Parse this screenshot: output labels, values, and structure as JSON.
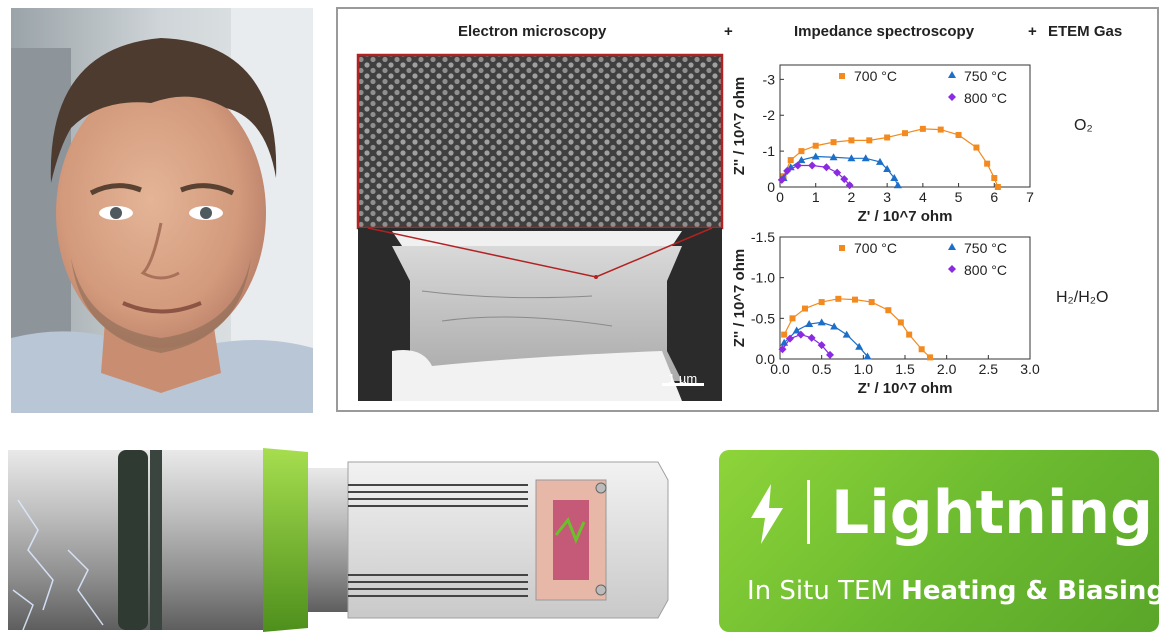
{
  "figure": {
    "header_left": "Electron microscopy",
    "plus1": "+",
    "header_mid": "Impedance spectroscopy",
    "plus2": "+",
    "header_right": "ETEM Gas",
    "scale_bar": "1 µm"
  },
  "chart_data": [
    {
      "type": "scatter",
      "gas": "O2",
      "xlabel": "Z' / 10^7 ohm",
      "ylabel": "Z'' / 10^7 ohm",
      "xlim": [
        0,
        7
      ],
      "ylim": [
        0,
        -3.4
      ],
      "x_ticks": [
        "0",
        "1",
        "2",
        "3",
        "4",
        "5",
        "6",
        "7"
      ],
      "y_ticks": [
        "0",
        "-1",
        "-2",
        "-3"
      ],
      "legend": [
        "700 °C",
        "750 °C",
        "800 °C"
      ],
      "series": [
        {
          "name": "700 °C",
          "color": "#f28a1f",
          "marker": "square",
          "points": [
            [
              0.1,
              -0.3
            ],
            [
              0.3,
              -0.75
            ],
            [
              0.6,
              -1.0
            ],
            [
              1.0,
              -1.15
            ],
            [
              1.5,
              -1.25
            ],
            [
              2.0,
              -1.3
            ],
            [
              2.5,
              -1.3
            ],
            [
              3.0,
              -1.38
            ],
            [
              3.5,
              -1.5
            ],
            [
              4.0,
              -1.62
            ],
            [
              4.5,
              -1.6
            ],
            [
              5.0,
              -1.45
            ],
            [
              5.5,
              -1.1
            ],
            [
              5.8,
              -0.65
            ],
            [
              6.0,
              -0.25
            ],
            [
              6.1,
              0.0
            ]
          ]
        },
        {
          "name": "750 °C",
          "color": "#1c6fc9",
          "marker": "triangle",
          "points": [
            [
              0.1,
              -0.25
            ],
            [
              0.3,
              -0.55
            ],
            [
              0.6,
              -0.75
            ],
            [
              1.0,
              -0.85
            ],
            [
              1.5,
              -0.83
            ],
            [
              2.0,
              -0.8
            ],
            [
              2.4,
              -0.8
            ],
            [
              2.8,
              -0.7
            ],
            [
              3.0,
              -0.5
            ],
            [
              3.2,
              -0.25
            ],
            [
              3.3,
              -0.05
            ]
          ]
        },
        {
          "name": "800 °C",
          "color": "#8a2be2",
          "marker": "diamond",
          "points": [
            [
              0.05,
              -0.2
            ],
            [
              0.2,
              -0.45
            ],
            [
              0.5,
              -0.6
            ],
            [
              0.9,
              -0.6
            ],
            [
              1.3,
              -0.55
            ],
            [
              1.6,
              -0.4
            ],
            [
              1.8,
              -0.22
            ],
            [
              1.95,
              -0.05
            ]
          ]
        }
      ]
    },
    {
      "type": "scatter",
      "gas": "H2/H2O",
      "xlabel": "Z' / 10^7 ohm",
      "ylabel": "Z'' / 10^7 ohm",
      "xlim": [
        0,
        3
      ],
      "ylim": [
        0,
        -1.5
      ],
      "x_ticks": [
        "0.0",
        "0.5",
        "1.0",
        "1.5",
        "2.0",
        "2.5",
        "3.0"
      ],
      "y_ticks": [
        "0.0",
        "-0.5",
        "-1.0",
        "-1.5"
      ],
      "legend": [
        "700 °C",
        "750 °C",
        "800 °C"
      ],
      "series": [
        {
          "name": "700 °C",
          "color": "#f28a1f",
          "marker": "square",
          "points": [
            [
              0.05,
              -0.3
            ],
            [
              0.15,
              -0.5
            ],
            [
              0.3,
              -0.62
            ],
            [
              0.5,
              -0.7
            ],
            [
              0.7,
              -0.74
            ],
            [
              0.9,
              -0.73
            ],
            [
              1.1,
              -0.7
            ],
            [
              1.3,
              -0.6
            ],
            [
              1.45,
              -0.45
            ],
            [
              1.55,
              -0.3
            ],
            [
              1.7,
              -0.12
            ],
            [
              1.8,
              -0.02
            ]
          ]
        },
        {
          "name": "750 °C",
          "color": "#1c6fc9",
          "marker": "triangle",
          "points": [
            [
              0.05,
              -0.2
            ],
            [
              0.2,
              -0.35
            ],
            [
              0.35,
              -0.43
            ],
            [
              0.5,
              -0.45
            ],
            [
              0.65,
              -0.4
            ],
            [
              0.8,
              -0.3
            ],
            [
              0.95,
              -0.15
            ],
            [
              1.05,
              -0.03
            ]
          ]
        },
        {
          "name": "800 °C",
          "color": "#8a2be2",
          "marker": "diamond",
          "points": [
            [
              0.03,
              -0.12
            ],
            [
              0.12,
              -0.25
            ],
            [
              0.25,
              -0.3
            ],
            [
              0.38,
              -0.26
            ],
            [
              0.5,
              -0.17
            ],
            [
              0.6,
              -0.05
            ]
          ]
        }
      ]
    }
  ],
  "branding": {
    "product": "Lightning",
    "tagline_light": "In Situ TEM ",
    "tagline_bold": "Heating & Biasing"
  }
}
